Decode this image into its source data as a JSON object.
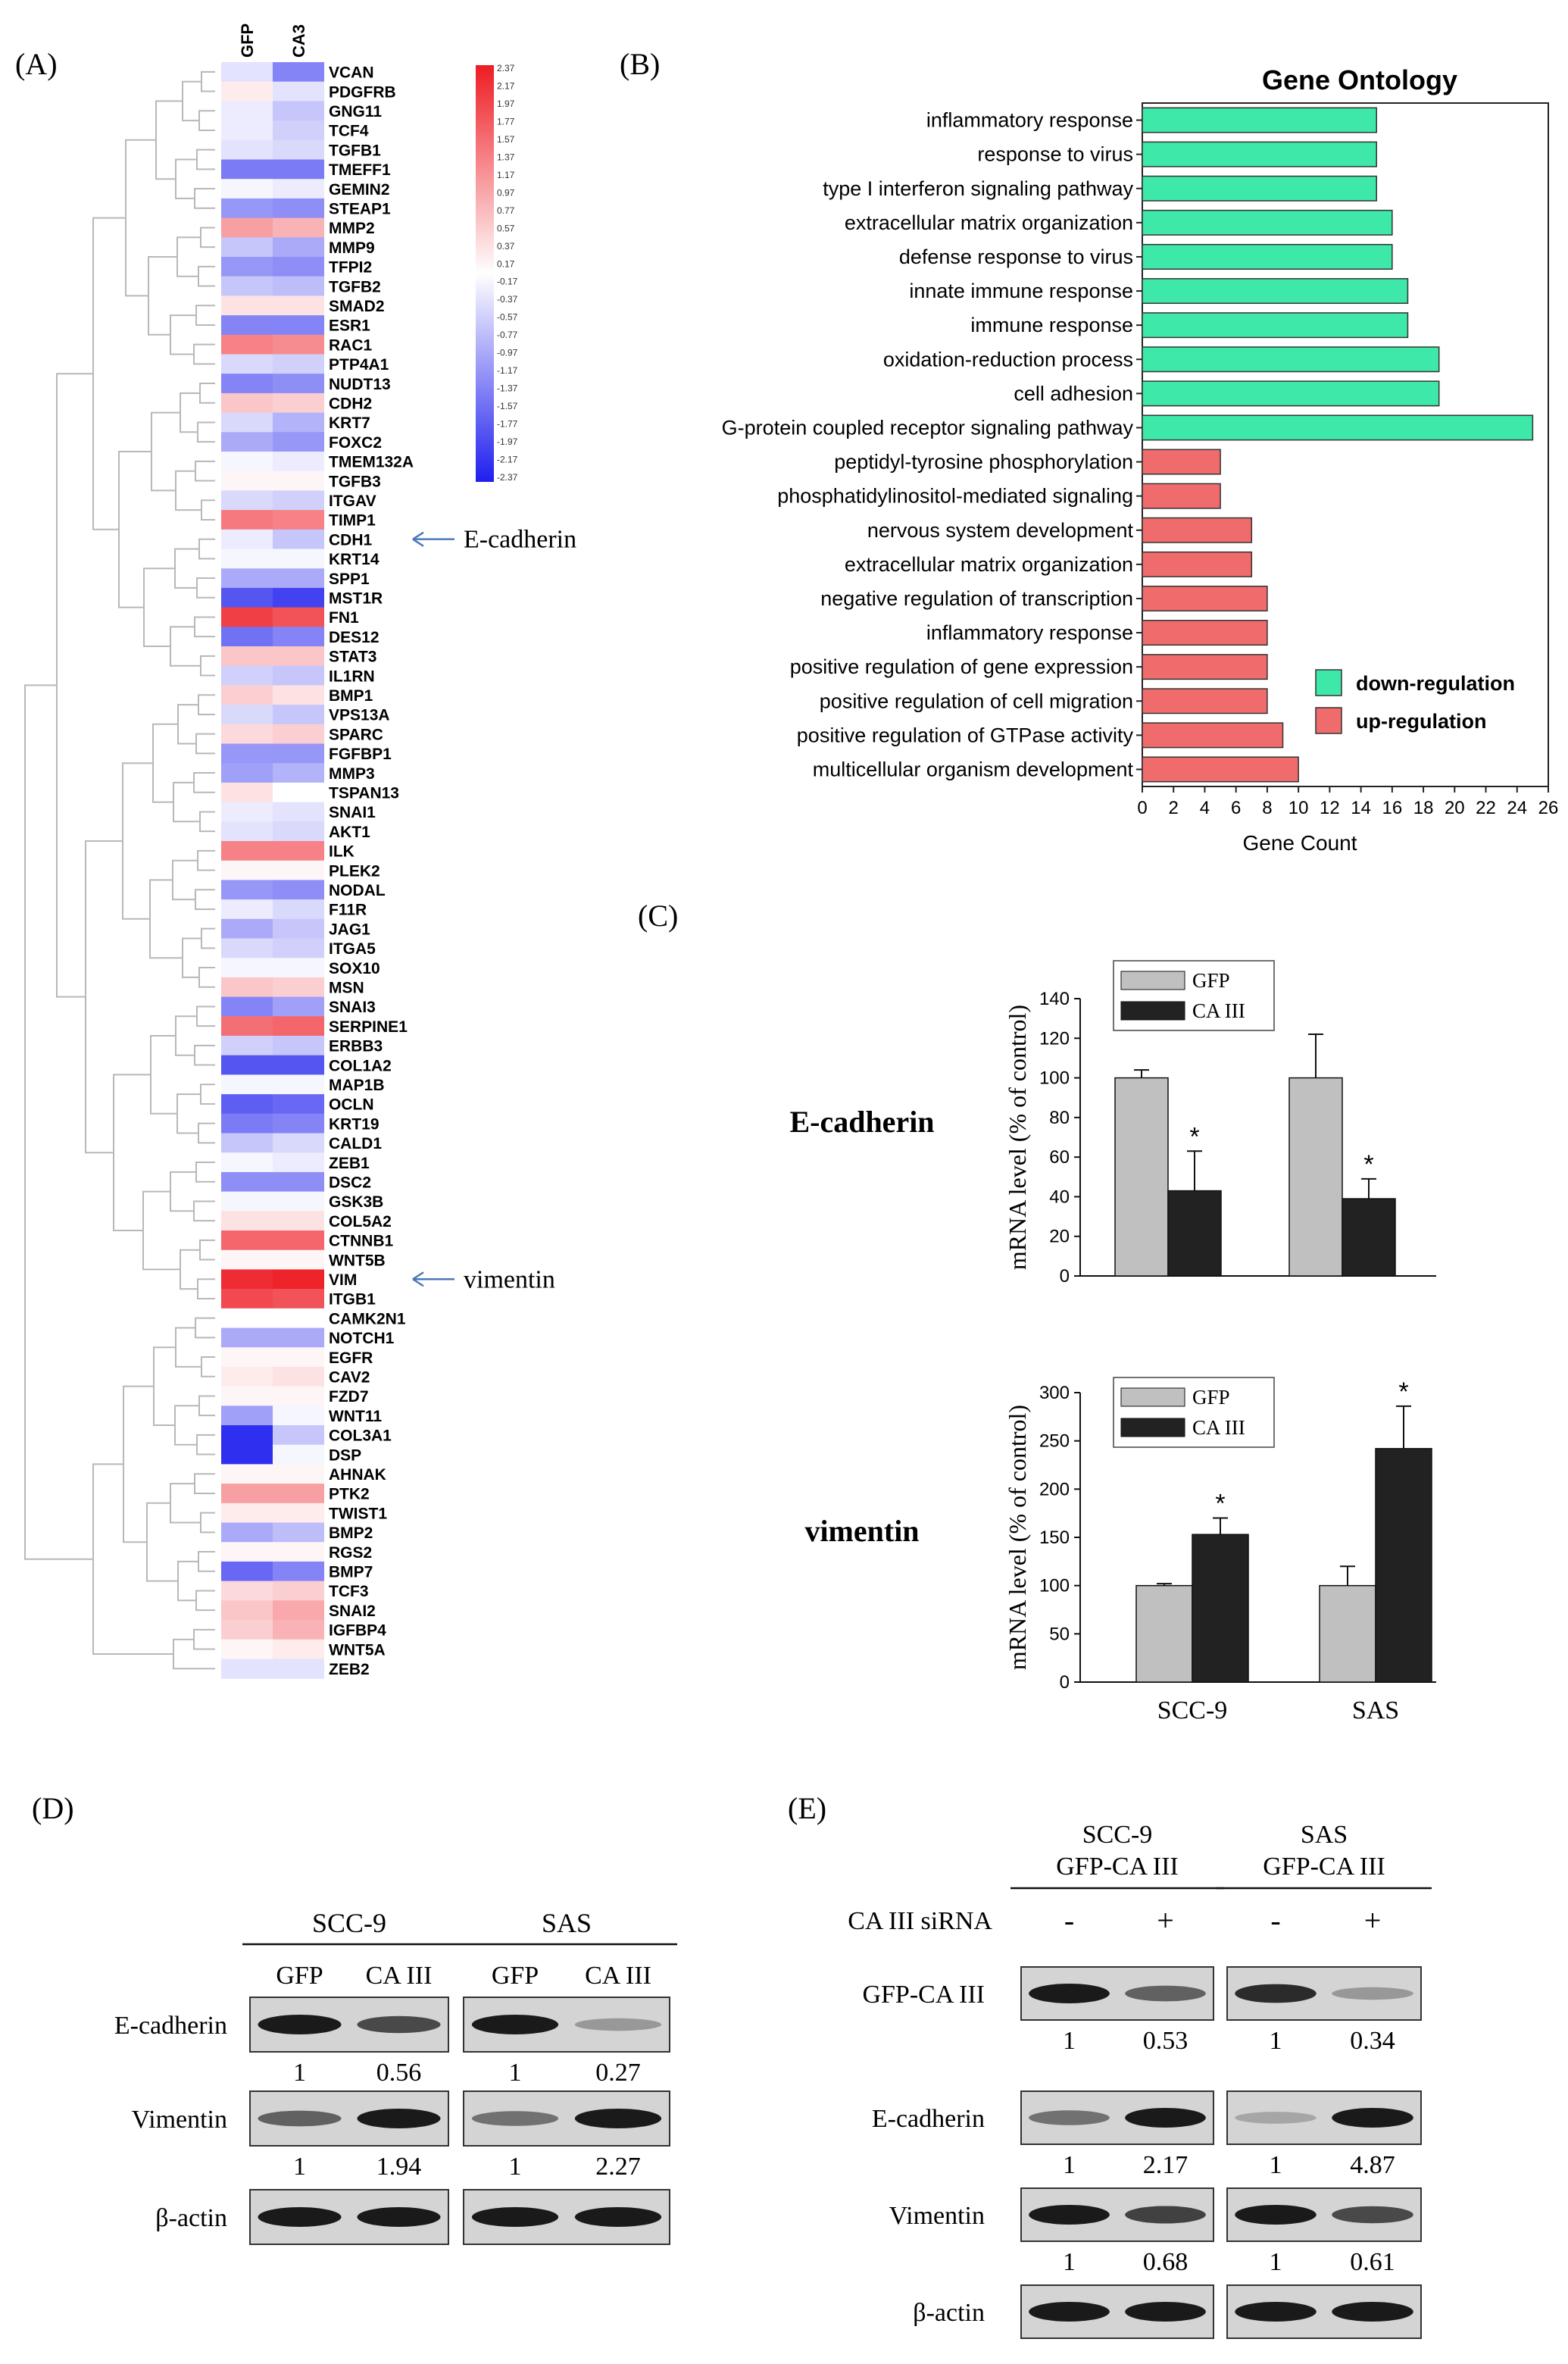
{
  "panels": {
    "A": "(A)",
    "B": "(B)",
    "C": "(C)",
    "D": "(D)",
    "E": "(E)"
  },
  "chart_data": [
    {
      "type": "heatmap",
      "columns": [
        "GFP",
        "CA3"
      ],
      "rows": [
        {
          "gene": "VCAN",
          "v": [
            -0.3,
            -1.3
          ]
        },
        {
          "gene": "PDGFRB",
          "v": [
            0.2,
            -0.3
          ]
        },
        {
          "gene": "GNG11",
          "v": [
            -0.2,
            -0.6
          ]
        },
        {
          "gene": "TCF4",
          "v": [
            -0.2,
            -0.5
          ]
        },
        {
          "gene": "TGFB1",
          "v": [
            -0.3,
            -0.4
          ]
        },
        {
          "gene": "TMEFF1",
          "v": [
            -1.4,
            -1.4
          ]
        },
        {
          "gene": "GEMIN2",
          "v": [
            -0.1,
            -0.2
          ]
        },
        {
          "gene": "STEAP1",
          "v": [
            -1.1,
            -1.2
          ]
        },
        {
          "gene": "MMP2",
          "v": [
            1.0,
            0.8
          ]
        },
        {
          "gene": "MMP9",
          "v": [
            -0.6,
            -0.9
          ]
        },
        {
          "gene": "TFPI2",
          "v": [
            -1.1,
            -1.2
          ]
        },
        {
          "gene": "TGFB2",
          "v": [
            -0.6,
            -0.7
          ]
        },
        {
          "gene": "SMAD2",
          "v": [
            0.3,
            0.3
          ]
        },
        {
          "gene": "ESR1",
          "v": [
            -1.3,
            -1.3
          ]
        },
        {
          "gene": "RAC1",
          "v": [
            1.3,
            1.2
          ]
        },
        {
          "gene": "PTP4A1",
          "v": [
            -0.4,
            -0.5
          ]
        },
        {
          "gene": "NUDT13",
          "v": [
            -1.3,
            -1.2
          ]
        },
        {
          "gene": "CDH2",
          "v": [
            0.6,
            0.5
          ]
        },
        {
          "gene": "KRT7",
          "v": [
            -0.4,
            -0.8
          ]
        },
        {
          "gene": "FOXC2",
          "v": [
            -0.9,
            -1.1
          ]
        },
        {
          "gene": "TMEM132A",
          "v": [
            -0.1,
            -0.2
          ]
        },
        {
          "gene": "TGFB3",
          "v": [
            0.1,
            0.1
          ]
        },
        {
          "gene": "ITGAV",
          "v": [
            -0.4,
            -0.5
          ]
        },
        {
          "gene": "TIMP1",
          "v": [
            1.4,
            1.3
          ]
        },
        {
          "gene": "CDH1",
          "v": [
            -0.2,
            -0.6
          ]
        },
        {
          "gene": "KRT14",
          "v": [
            -0.1,
            -0.1
          ]
        },
        {
          "gene": "SPP1",
          "v": [
            -0.9,
            -0.9
          ]
        },
        {
          "gene": "MST1R",
          "v": [
            -1.8,
            -2.0
          ]
        },
        {
          "gene": "FN1",
          "v": [
            2.0,
            1.8
          ]
        },
        {
          "gene": "DES12",
          "v": [
            -1.5,
            -1.3
          ]
        },
        {
          "gene": "STAT3",
          "v": [
            0.6,
            0.6
          ]
        },
        {
          "gene": "IL1RN",
          "v": [
            -0.5,
            -0.6
          ]
        },
        {
          "gene": "BMP1",
          "v": [
            0.5,
            0.3
          ]
        },
        {
          "gene": "VPS13A",
          "v": [
            -0.4,
            -0.6
          ]
        },
        {
          "gene": "SPARC",
          "v": [
            0.4,
            0.5
          ]
        },
        {
          "gene": "FGFBP1",
          "v": [
            -1.1,
            -1.1
          ]
        },
        {
          "gene": "MMP3",
          "v": [
            -1.0,
            -0.8
          ]
        },
        {
          "gene": "TSPAN13",
          "v": [
            0.3,
            0.0
          ]
        },
        {
          "gene": "SNAI1",
          "v": [
            -0.2,
            -0.3
          ]
        },
        {
          "gene": "AKT1",
          "v": [
            -0.3,
            -0.4
          ]
        },
        {
          "gene": "ILK",
          "v": [
            1.3,
            1.3
          ]
        },
        {
          "gene": "PLEK2",
          "v": [
            0.1,
            0.1
          ]
        },
        {
          "gene": "NODAL",
          "v": [
            -1.1,
            -1.2
          ]
        },
        {
          "gene": "F11R",
          "v": [
            -0.2,
            -0.4
          ]
        },
        {
          "gene": "JAG1",
          "v": [
            -0.9,
            -0.6
          ]
        },
        {
          "gene": "ITGA5",
          "v": [
            -0.4,
            -0.5
          ]
        },
        {
          "gene": "SOX10",
          "v": [
            -0.1,
            -0.1
          ]
        },
        {
          "gene": "MSN",
          "v": [
            0.6,
            0.5
          ]
        },
        {
          "gene": "SNAI3",
          "v": [
            -1.3,
            -1.0
          ]
        },
        {
          "gene": "SERPINE1",
          "v": [
            1.5,
            1.6
          ]
        },
        {
          "gene": "ERBB3",
          "v": [
            -0.5,
            -0.6
          ]
        },
        {
          "gene": "COL1A2",
          "v": [
            -1.8,
            -1.8
          ]
        },
        {
          "gene": "MAP1B",
          "v": [
            -0.1,
            -0.1
          ]
        },
        {
          "gene": "OCLN",
          "v": [
            -1.7,
            -1.6
          ]
        },
        {
          "gene": "KRT19",
          "v": [
            -1.4,
            -1.3
          ]
        },
        {
          "gene": "CALD1",
          "v": [
            -0.6,
            -0.4
          ]
        },
        {
          "gene": "ZEB1",
          "v": [
            -0.1,
            -0.2
          ]
        },
        {
          "gene": "DSC2",
          "v": [
            -1.2,
            -1.2
          ]
        },
        {
          "gene": "GSK3B",
          "v": [
            -0.1,
            -0.1
          ]
        },
        {
          "gene": "COL5A2",
          "v": [
            0.3,
            0.3
          ]
        },
        {
          "gene": "CTNNB1",
          "v": [
            1.6,
            1.6
          ]
        },
        {
          "gene": "WNT5B",
          "v": [
            0.1,
            0.1
          ]
        },
        {
          "gene": "VIM",
          "v": [
            2.2,
            2.3
          ]
        },
        {
          "gene": "ITGB1",
          "v": [
            1.9,
            1.8
          ]
        },
        {
          "gene": "CAMK2N1",
          "v": [
            0.0,
            0.0
          ]
        },
        {
          "gene": "NOTCH1",
          "v": [
            -0.9,
            -0.9
          ]
        },
        {
          "gene": "EGFR",
          "v": [
            0.1,
            0.1
          ]
        },
        {
          "gene": "CAV2",
          "v": [
            0.2,
            0.3
          ]
        },
        {
          "gene": "FZD7",
          "v": [
            0.1,
            0.1
          ]
        },
        {
          "gene": "WNT11",
          "v": [
            -1.0,
            -0.1
          ]
        },
        {
          "gene": "COL3A1",
          "v": [
            -2.2,
            -0.6
          ]
        },
        {
          "gene": "DSP",
          "v": [
            -2.2,
            -0.1
          ]
        },
        {
          "gene": "AHNAK",
          "v": [
            0.1,
            0.1
          ]
        },
        {
          "gene": "PTK2",
          "v": [
            1.0,
            1.0
          ]
        },
        {
          "gene": "TWIST1",
          "v": [
            0.2,
            0.2
          ]
        },
        {
          "gene": "BMP2",
          "v": [
            -0.9,
            -0.7
          ]
        },
        {
          "gene": "RGS2",
          "v": [
            0.1,
            0.1
          ]
        },
        {
          "gene": "BMP7",
          "v": [
            -1.6,
            -1.3
          ]
        },
        {
          "gene": "TCF3",
          "v": [
            0.4,
            0.5
          ]
        },
        {
          "gene": "SNAI2",
          "v": [
            0.6,
            0.9
          ]
        },
        {
          "gene": "IGFBP4",
          "v": [
            0.5,
            0.8
          ]
        },
        {
          "gene": "WNT5A",
          "v": [
            0.1,
            0.2
          ]
        },
        {
          "gene": "ZEB2",
          "v": [
            -0.3,
            -0.3
          ]
        }
      ],
      "colorbar": {
        "ticks": [
          "2.37",
          "2.17",
          "1.97",
          "1.77",
          "1.57",
          "1.37",
          "1.17",
          "0.97",
          "0.77",
          "0.57",
          "0.37",
          "0.17",
          "-0.17",
          "-0.37",
          "-0.57",
          "-0.77",
          "-0.97",
          "-1.17",
          "-1.37",
          "-1.57",
          "-1.77",
          "-1.97",
          "-2.17",
          "-2.37"
        ],
        "colors": {
          "high": "#ee1c24",
          "mid": "#ffffff",
          "low": "#1f1fee"
        }
      },
      "annotations": [
        {
          "gene": "CDH1",
          "label": "E-cadherin"
        },
        {
          "gene": "VIM",
          "label": "vimentin"
        }
      ]
    },
    {
      "type": "bar",
      "title": "Gene Ontology",
      "xlabel": "Gene Count",
      "xlim": [
        0,
        26
      ],
      "xticks": [
        "0",
        "2",
        "4",
        "6",
        "8",
        "10",
        "12",
        "14",
        "16",
        "18",
        "20",
        "22",
        "24",
        "26"
      ],
      "categories": [
        "inflammatory response",
        "response to virus",
        "type I interferon signaling pathway",
        "extracellular matrix organization",
        "defense response to virus",
        "innate immune response",
        "immune response",
        "oxidation-reduction process",
        "cell adhesion",
        "G-protein coupled receptor signaling pathway",
        "peptidyl-tyrosine phosphorylation",
        "phosphatidylinositol-mediated signaling",
        "nervous system development",
        "extracellular matrix organization",
        "negative regulation of transcription",
        "inflammatory response",
        "positive regulation of gene expression",
        "positive regulation of cell migration",
        "positive regulation of GTPase activity",
        "multicellular organism development"
      ],
      "values": [
        15,
        15,
        15,
        16,
        16,
        17,
        17,
        19,
        19,
        25,
        5,
        5,
        7,
        7,
        8,
        8,
        8,
        8,
        9,
        10
      ],
      "groups": [
        "down",
        "down",
        "down",
        "down",
        "down",
        "down",
        "down",
        "down",
        "down",
        "down",
        "up",
        "up",
        "up",
        "up",
        "up",
        "up",
        "up",
        "up",
        "up",
        "up"
      ],
      "legend": [
        {
          "key": "down",
          "label": "down-regulation",
          "color": "#3ee8a8"
        },
        {
          "key": "up",
          "label": "up-regulation",
          "color": "#f06c6c"
        }
      ],
      "legend_position": "bottom-right"
    },
    {
      "type": "bar",
      "title": "E-cadherin",
      "ylabel": "mRNA level (% of control)",
      "ylim": [
        0,
        140
      ],
      "yticks": [
        "0",
        "20",
        "40",
        "60",
        "80",
        "100",
        "120",
        "140"
      ],
      "categories": [
        "SCC-9",
        "SAS"
      ],
      "show_categories": false,
      "series": [
        {
          "name": "GFP",
          "values": [
            100,
            100
          ],
          "errors": [
            4,
            22
          ],
          "color": "#c0c0c0"
        },
        {
          "name": "CA III",
          "values": [
            43,
            39
          ],
          "errors": [
            20,
            10
          ],
          "color": "#222222"
        }
      ],
      "significance": [
        {
          "category": "SCC-9",
          "series": "CA III",
          "mark": "*"
        },
        {
          "category": "SAS",
          "series": "CA III",
          "mark": "*"
        }
      ]
    },
    {
      "type": "bar",
      "title": "vimentin",
      "ylabel": "mRNA level (% of control)",
      "ylim": [
        0,
        300
      ],
      "yticks": [
        "0",
        "50",
        "100",
        "150",
        "200",
        "250",
        "300"
      ],
      "categories": [
        "SCC-9",
        "SAS"
      ],
      "show_categories": true,
      "series": [
        {
          "name": "GFP",
          "values": [
            100,
            100
          ],
          "errors": [
            2,
            20
          ],
          "color": "#c0c0c0"
        },
        {
          "name": "CA III",
          "values": [
            153,
            242
          ],
          "errors": [
            17,
            44
          ],
          "color": "#222222"
        }
      ],
      "significance": [
        {
          "category": "SCC-9",
          "series": "CA III",
          "mark": "*"
        },
        {
          "category": "SAS",
          "series": "CA III",
          "mark": "*"
        }
      ]
    }
  ],
  "blotD": {
    "groups": [
      {
        "name": "SCC-9",
        "lanes": [
          "GFP",
          "CA III"
        ]
      },
      {
        "name": "SAS",
        "lanes": [
          "GFP",
          "CA III"
        ]
      }
    ],
    "rows": [
      {
        "label": "E-cadherin",
        "intensity": [
          [
            1,
            0.7
          ],
          [
            1,
            0.2
          ]
        ],
        "values": [
          [
            "1",
            "0.56"
          ],
          [
            "1",
            "0.27"
          ]
        ]
      },
      {
        "label": "Vimentin",
        "intensity": [
          [
            0.55,
            1
          ],
          [
            0.45,
            1
          ]
        ],
        "values": [
          [
            "1",
            "1.94"
          ],
          [
            "1",
            "2.27"
          ]
        ]
      },
      {
        "label": "β-actin",
        "intensity": [
          [
            1,
            1
          ],
          [
            1,
            1
          ]
        ],
        "values": null
      }
    ]
  },
  "blotE": {
    "groups": [
      {
        "name": "SCC-9",
        "sub": "GFP-CA III"
      },
      {
        "name": "SAS",
        "sub": "GFP-CA III"
      }
    ],
    "condition_label": "CA III siRNA",
    "lanes": [
      "-",
      "+"
    ],
    "rows": [
      {
        "label": "GFP-CA III",
        "intensity": [
          [
            1,
            0.55
          ],
          [
            0.9,
            0.2
          ]
        ],
        "values": [
          [
            "1",
            "0.53"
          ],
          [
            "1",
            "0.34"
          ]
        ]
      },
      {
        "label": "E-cadherin",
        "intensity": [
          [
            0.45,
            1
          ],
          [
            0.12,
            1
          ]
        ],
        "values": [
          [
            "1",
            "2.17"
          ],
          [
            "1",
            "4.87"
          ]
        ]
      },
      {
        "label": "Vimentin",
        "intensity": [
          [
            1,
            0.75
          ],
          [
            1,
            0.7
          ]
        ],
        "values": [
          [
            "1",
            "0.68"
          ],
          [
            "1",
            "0.61"
          ]
        ]
      },
      {
        "label": "β-actin",
        "intensity": [
          [
            1,
            1
          ],
          [
            1,
            1
          ]
        ],
        "values": null
      }
    ]
  }
}
